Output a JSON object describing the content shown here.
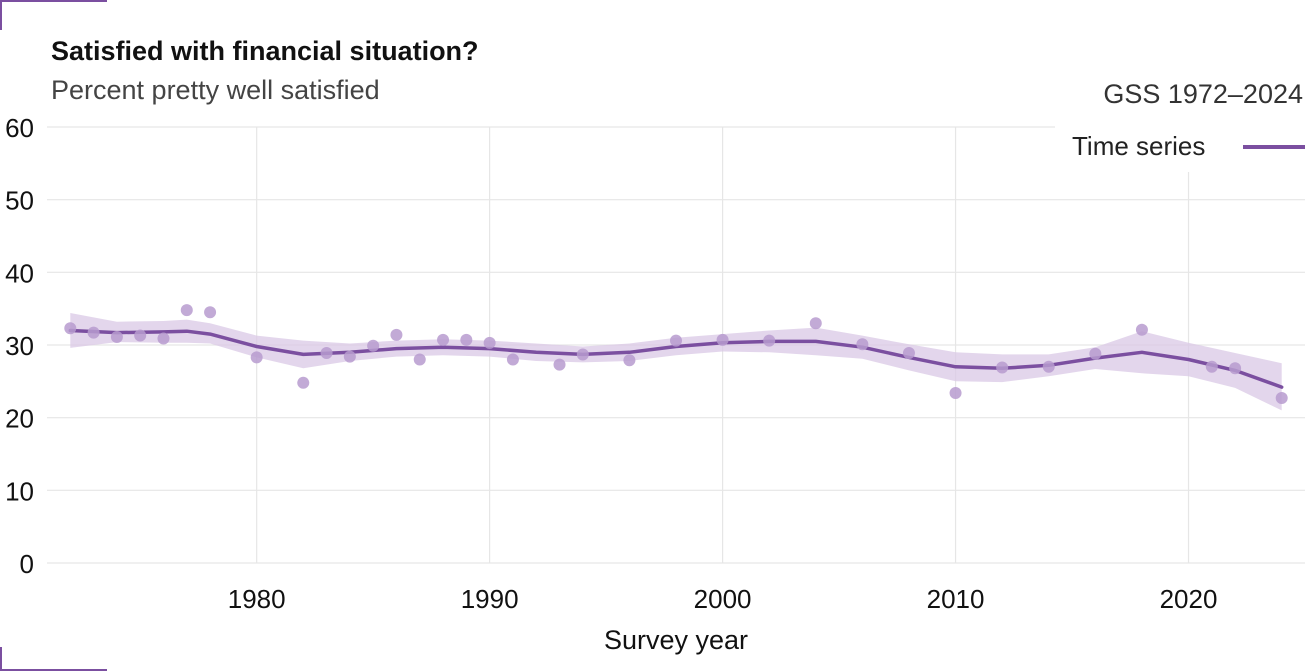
{
  "header": {
    "title": "Satisfied with financial situation?",
    "subtitle": "Percent pretty well satisfied"
  },
  "legend": {
    "title": "GSS 1972–2024",
    "items": [
      {
        "label": "Time series",
        "color": "#7b4fa0"
      }
    ],
    "placement": "top-right"
  },
  "colors": {
    "accent": "#7b4fa0",
    "band": "#d9c8e6",
    "point": "#b79bcf",
    "grid": "#e6e6e6"
  },
  "chart_data": {
    "type": "line",
    "title": "Satisfied with financial situation?",
    "subtitle": "Percent pretty well satisfied",
    "xlabel": "Survey year",
    "ylabel": "",
    "xlim": [
      1971,
      2025
    ],
    "ylim": [
      0,
      60
    ],
    "x_ticks": [
      "1980",
      "1990",
      "2000",
      "2010",
      "2020"
    ],
    "y_ticks": [
      "0",
      "10",
      "20",
      "30",
      "40",
      "50",
      "60"
    ],
    "grid": true,
    "points": [
      {
        "x": 1972,
        "y": 32.3
      },
      {
        "x": 1973,
        "y": 31.7
      },
      {
        "x": 1974,
        "y": 31.1
      },
      {
        "x": 1975,
        "y": 31.3
      },
      {
        "x": 1976,
        "y": 30.9
      },
      {
        "x": 1977,
        "y": 34.8
      },
      {
        "x": 1978,
        "y": 34.5
      },
      {
        "x": 1980,
        "y": 28.3
      },
      {
        "x": 1982,
        "y": 24.8
      },
      {
        "x": 1983,
        "y": 28.9
      },
      {
        "x": 1984,
        "y": 28.4
      },
      {
        "x": 1985,
        "y": 29.9
      },
      {
        "x": 1986,
        "y": 31.4
      },
      {
        "x": 1987,
        "y": 28.0
      },
      {
        "x": 1988,
        "y": 30.7
      },
      {
        "x": 1989,
        "y": 30.7
      },
      {
        "x": 1990,
        "y": 30.3
      },
      {
        "x": 1991,
        "y": 28.0
      },
      {
        "x": 1993,
        "y": 27.3
      },
      {
        "x": 1994,
        "y": 28.7
      },
      {
        "x": 1996,
        "y": 27.9
      },
      {
        "x": 1998,
        "y": 30.6
      },
      {
        "x": 2000,
        "y": 30.7
      },
      {
        "x": 2002,
        "y": 30.6
      },
      {
        "x": 2004,
        "y": 33.0
      },
      {
        "x": 2006,
        "y": 30.1
      },
      {
        "x": 2008,
        "y": 28.9
      },
      {
        "x": 2010,
        "y": 23.4
      },
      {
        "x": 2012,
        "y": 26.9
      },
      {
        "x": 2014,
        "y": 27.0
      },
      {
        "x": 2016,
        "y": 28.8
      },
      {
        "x": 2018,
        "y": 32.1
      },
      {
        "x": 2021,
        "y": 27.0
      },
      {
        "x": 2022,
        "y": 26.8
      },
      {
        "x": 2024,
        "y": 22.7
      }
    ],
    "series": [
      {
        "name": "Time series",
        "x": [
          1972,
          1974,
          1976,
          1977,
          1978,
          1980,
          1982,
          1984,
          1986,
          1988,
          1990,
          1992,
          1994,
          1996,
          1998,
          2000,
          2002,
          2004,
          2006,
          2008,
          2010,
          2012,
          2014,
          2016,
          2018,
          2020,
          2022,
          2024
        ],
        "y": [
          32.0,
          31.7,
          31.8,
          31.9,
          31.5,
          29.8,
          28.7,
          29.0,
          29.5,
          29.7,
          29.5,
          29.0,
          28.7,
          29.0,
          29.8,
          30.3,
          30.5,
          30.5,
          29.7,
          28.3,
          27.0,
          26.8,
          27.2,
          28.2,
          29.0,
          28.0,
          26.5,
          24.2
        ],
        "lower": [
          29.6,
          30.4,
          30.3,
          30.3,
          30.2,
          28.3,
          26.8,
          27.8,
          28.4,
          28.6,
          28.4,
          27.8,
          27.6,
          27.8,
          28.6,
          29.1,
          29.0,
          28.6,
          28.1,
          26.5,
          25.0,
          24.9,
          25.7,
          26.7,
          26.1,
          25.7,
          24.1,
          21.0
        ],
        "upper": [
          34.4,
          33.2,
          33.3,
          33.5,
          33.0,
          31.3,
          30.6,
          30.2,
          30.6,
          30.8,
          30.6,
          30.2,
          29.8,
          30.2,
          31.0,
          31.5,
          32.0,
          32.4,
          31.3,
          30.1,
          29.0,
          28.7,
          28.7,
          29.7,
          31.9,
          30.3,
          28.9,
          27.5
        ]
      }
    ]
  }
}
